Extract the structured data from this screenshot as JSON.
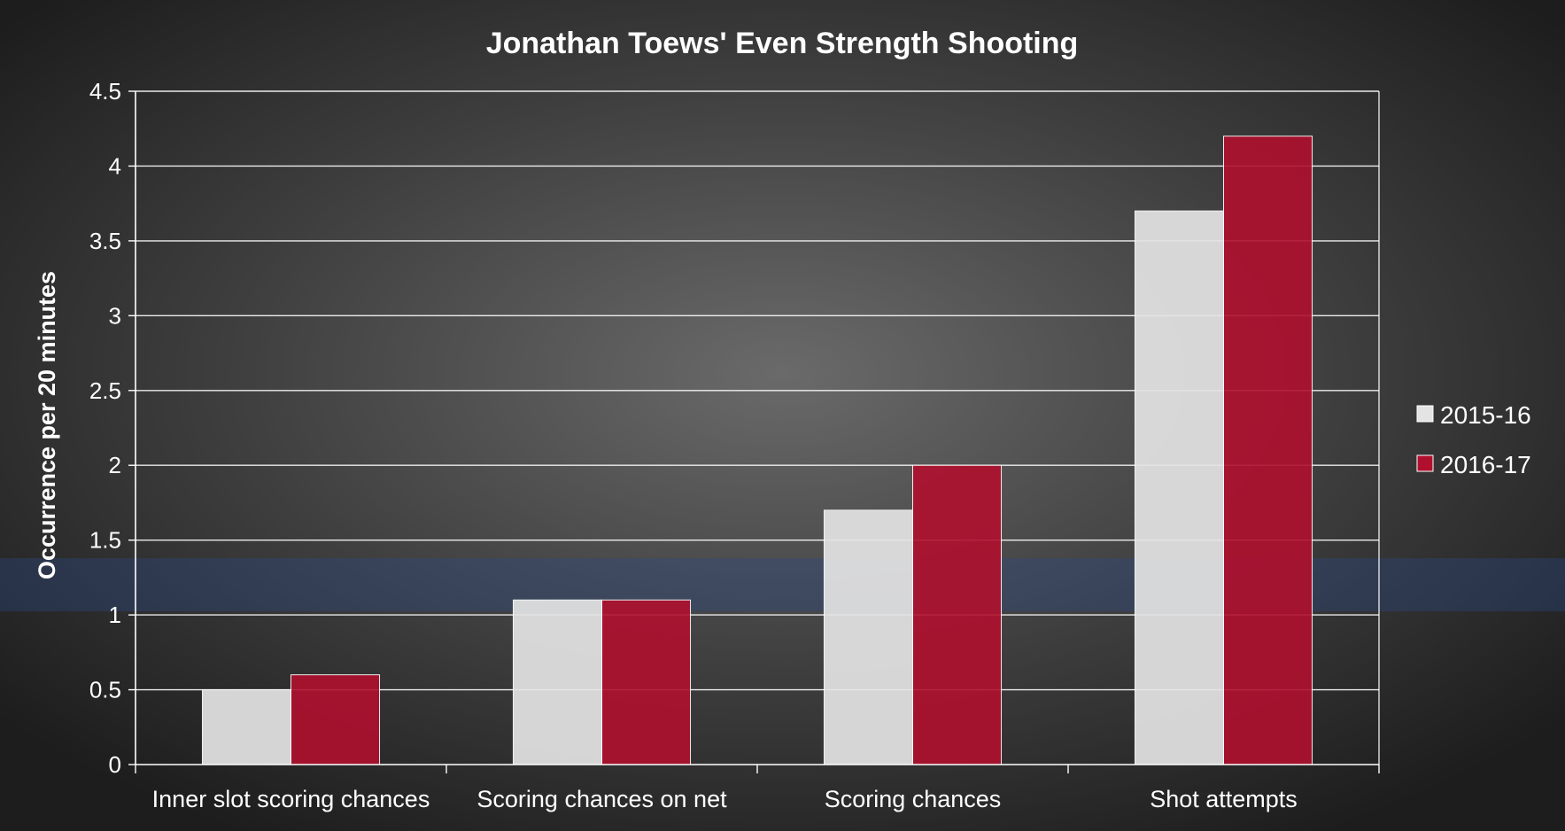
{
  "chart_data": {
    "type": "bar",
    "title": "Jonathan Toews' Even Strength Shooting",
    "xlabel": "",
    "ylabel": "Occurrence per 20 minutes",
    "ylim": [
      0,
      4.5
    ],
    "yticks": [
      "0",
      "0.5",
      "1",
      "1.5",
      "2",
      "2.5",
      "3",
      "3.5",
      "4",
      "4.5"
    ],
    "grid": true,
    "legend_position": "right",
    "categories": [
      "Inner slot scoring chances",
      "Scoring chances on net",
      "Scoring chances",
      "Shot attempts"
    ],
    "series": [
      {
        "name": "2015-16",
        "color": "#e4e4e4",
        "values": [
          0.5,
          1.1,
          1.7,
          3.7
        ]
      },
      {
        "name": "2016-17",
        "color": "#b0102e",
        "values": [
          0.6,
          1.1,
          2.0,
          4.2
        ]
      }
    ]
  }
}
